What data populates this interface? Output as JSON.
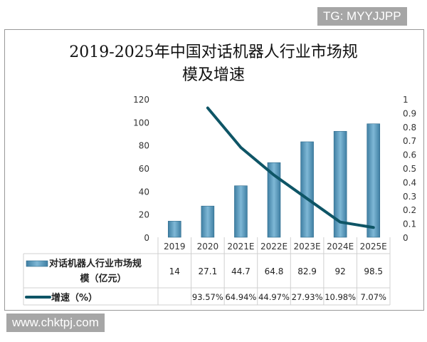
{
  "watermarks": {
    "top": "TG: MYYJJPP",
    "bottom": "www.chktpj.com"
  },
  "chart_data": {
    "type": "bar+line",
    "title_line1": "2019-2025年中国对话机器人行业市场规",
    "title_line2": "模及增速",
    "categories": [
      "2019",
      "2020",
      "2021E",
      "2022E",
      "2023E",
      "2024E",
      "2025E"
    ],
    "series": [
      {
        "name": "对话机器人行业市场规模（亿元）",
        "type": "bar",
        "axis": "left",
        "values": [
          14,
          27.1,
          44.7,
          64.8,
          82.9,
          92,
          98.5
        ],
        "labels": [
          "14",
          "27.1",
          "44.7",
          "64.8",
          "82.9",
          "92",
          "98.5"
        ],
        "color": "#5b9bbd"
      },
      {
        "name": "增速（%）",
        "type": "line",
        "axis": "right",
        "values": [
          null,
          0.9357,
          0.6494,
          0.4497,
          0.2793,
          0.1098,
          0.0707
        ],
        "labels": [
          "",
          "93.57%",
          "64.94%",
          "44.97%",
          "27.93%",
          "10.98%",
          "7.07%"
        ],
        "color": "#0e5566"
      }
    ],
    "left_axis": {
      "ylim": [
        0,
        120
      ],
      "ticks": [
        "0",
        "20",
        "40",
        "60",
        "80",
        "100",
        "120"
      ]
    },
    "right_axis": {
      "ylim": [
        0,
        1
      ],
      "ticks": [
        "0",
        "0.1",
        "0.2",
        "0.3",
        "0.4",
        "0.5",
        "0.6",
        "0.7",
        "0.8",
        "0.9",
        "1"
      ]
    },
    "legend": "data-table",
    "grid": false
  }
}
